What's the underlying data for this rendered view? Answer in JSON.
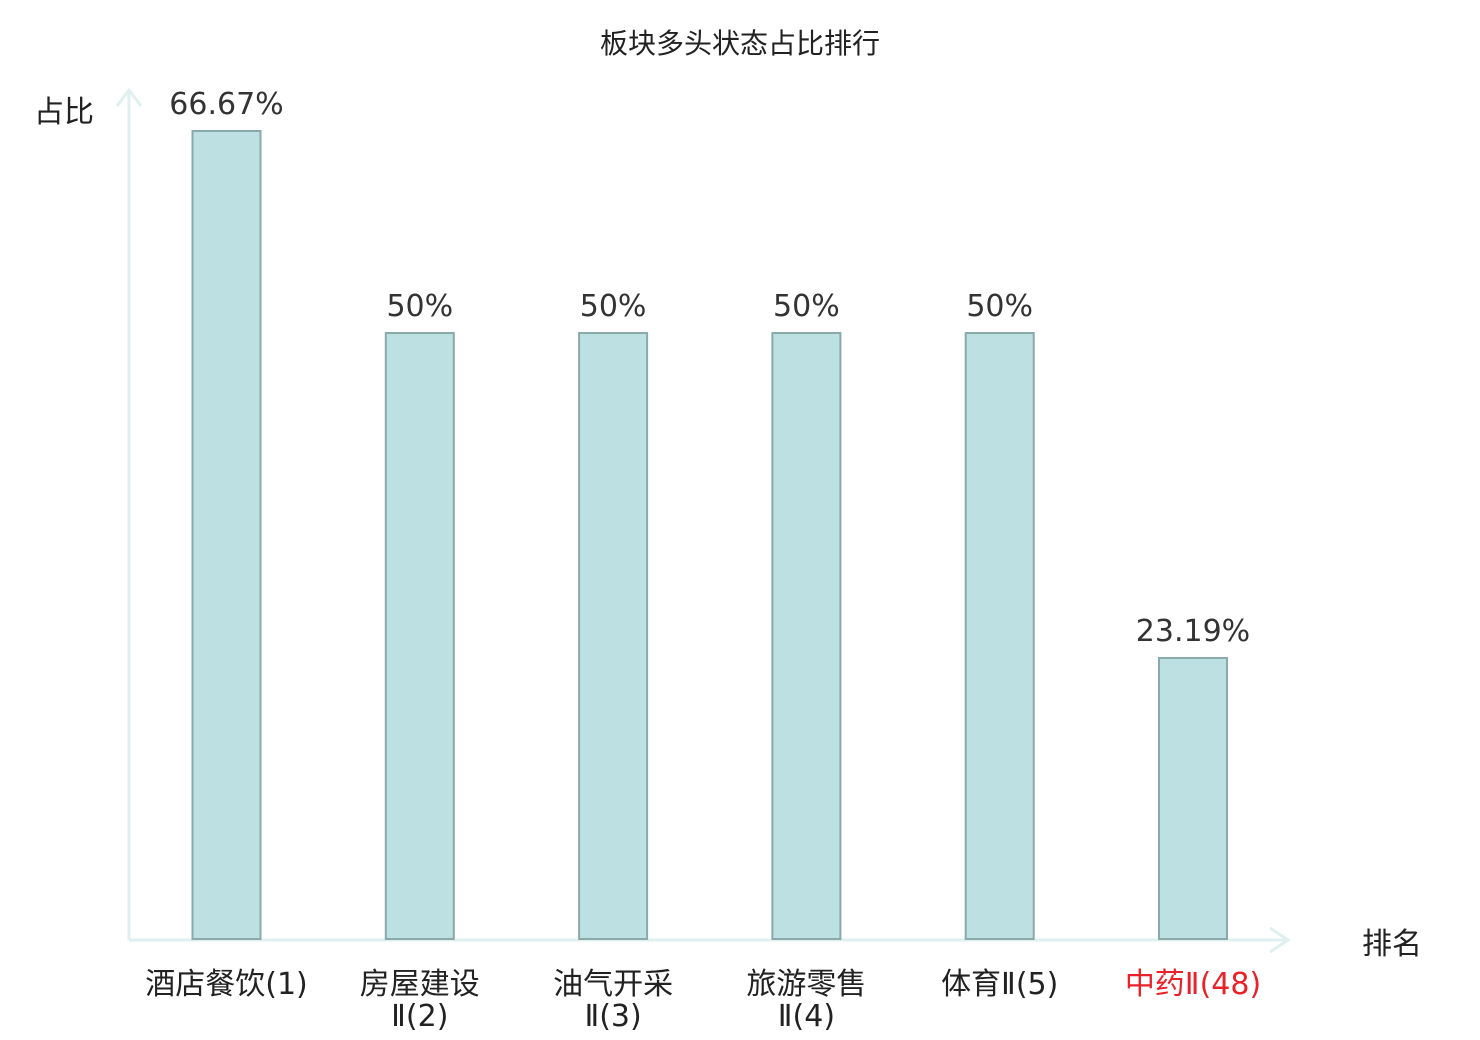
{
  "chart_data": {
    "type": "bar",
    "title": "板块多头状态占比排行",
    "ylabel": "占比",
    "xlabel": "排名",
    "categories": [
      [
        "酒店餐饮(1)"
      ],
      [
        "房屋建设",
        "Ⅱ(2)"
      ],
      [
        "油气开采",
        "Ⅱ(3)"
      ],
      [
        "旅游零售",
        "Ⅱ(4)"
      ],
      [
        "体育Ⅱ(5)"
      ],
      [
        "中药Ⅱ(48)"
      ]
    ],
    "values": [
      66.67,
      50,
      50,
      50,
      50,
      23.19
    ],
    "value_labels": [
      "66.67%",
      "50%",
      "50%",
      "50%",
      "50%",
      "23.19%"
    ],
    "highlight_index": 5,
    "ylim": [
      0,
      66.67
    ],
    "grid": false,
    "colors": {
      "bar_fill": "#bde0e3",
      "bar_stroke": "#8aa9ab",
      "axis": "#dff0ee",
      "label": "#222222",
      "highlight": "#e8222a"
    }
  }
}
